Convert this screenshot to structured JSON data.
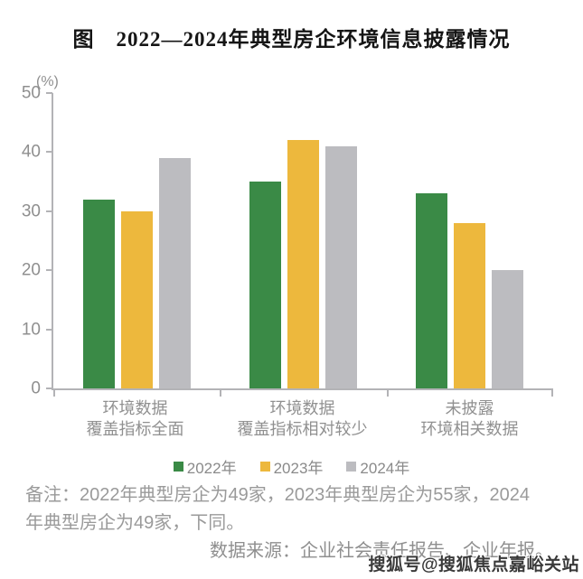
{
  "title": "图　2022—2024年典型房企环境信息披露情况",
  "chart_data": {
    "type": "bar",
    "title": "图 2022—2024年典型房企环境信息披露情况",
    "unit_label": "(%)",
    "categories": [
      [
        "环境数据",
        "覆盖指标全面"
      ],
      [
        "环境数据",
        "覆盖指标相对较少"
      ],
      [
        "未披露",
        "环境相关数据"
      ]
    ],
    "series": [
      {
        "name": "2022年",
        "color": "#3a8a46",
        "values": [
          32,
          35,
          33
        ]
      },
      {
        "name": "2023年",
        "color": "#edb83d",
        "values": [
          30,
          42,
          28
        ]
      },
      {
        "name": "2024年",
        "color": "#bcbcc0",
        "values": [
          39,
          41,
          20
        ]
      }
    ],
    "ylim": [
      0,
      50
    ],
    "yticks": [
      0,
      10,
      20,
      30,
      40,
      50
    ],
    "grid": false,
    "legend_position": "bottom",
    "axis_color": "#b3b3b6",
    "tick_label_color": "#8f8f8f"
  },
  "notes": {
    "lines": [
      "备注：2022年典型房企为49家，2023年典型房企为55家，2024",
      "年典型房企为49家，下同。"
    ]
  },
  "source": "数据来源：企业社会责任报告、企业年报。",
  "watermark": "搜狐号@搜狐焦点嘉峪关站"
}
